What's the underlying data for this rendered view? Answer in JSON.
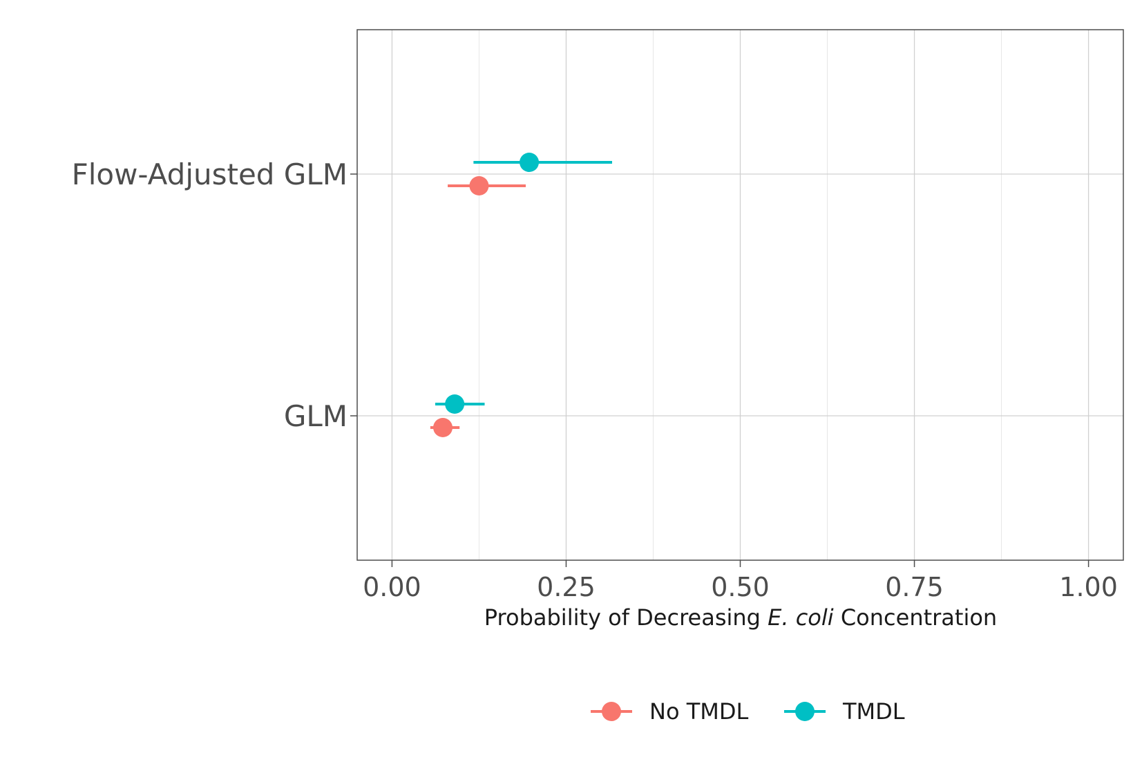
{
  "chart_data": {
    "type": "scatter",
    "subtype": "dot-and-whisker",
    "orientation": "horizontal",
    "categories": [
      "GLM",
      "Flow-Adjusted GLM"
    ],
    "series": [
      {
        "name": "No TMDL",
        "color": "#F8766D",
        "points": [
          {
            "category": "GLM",
            "estimate": 0.073,
            "lower": 0.055,
            "upper": 0.097
          },
          {
            "category": "Flow-Adjusted GLM",
            "estimate": 0.125,
            "lower": 0.08,
            "upper": 0.192
          }
        ]
      },
      {
        "name": "TMDL",
        "color": "#00BFC4",
        "points": [
          {
            "category": "GLM",
            "estimate": 0.09,
            "lower": 0.062,
            "upper": 0.133
          },
          {
            "category": "Flow-Adjusted GLM",
            "estimate": 0.197,
            "lower": 0.117,
            "upper": 0.316
          }
        ]
      }
    ],
    "xlabel_parts": [
      {
        "text": "Probability of Decreasing ",
        "italic": false
      },
      {
        "text": "E. coli",
        "italic": true
      },
      {
        "text": " Concentration",
        "italic": false
      }
    ],
    "ylabel": "",
    "xlim": [
      -0.05,
      1.05
    ],
    "xticks": [
      0.0,
      0.25,
      0.5,
      0.75,
      1.0
    ],
    "xtick_labels": [
      "0.00",
      "0.25",
      "0.50",
      "0.75",
      "1.00"
    ],
    "grid": true,
    "legend_position": "bottom",
    "legend_items": [
      "No TMDL",
      "TMDL"
    ]
  }
}
